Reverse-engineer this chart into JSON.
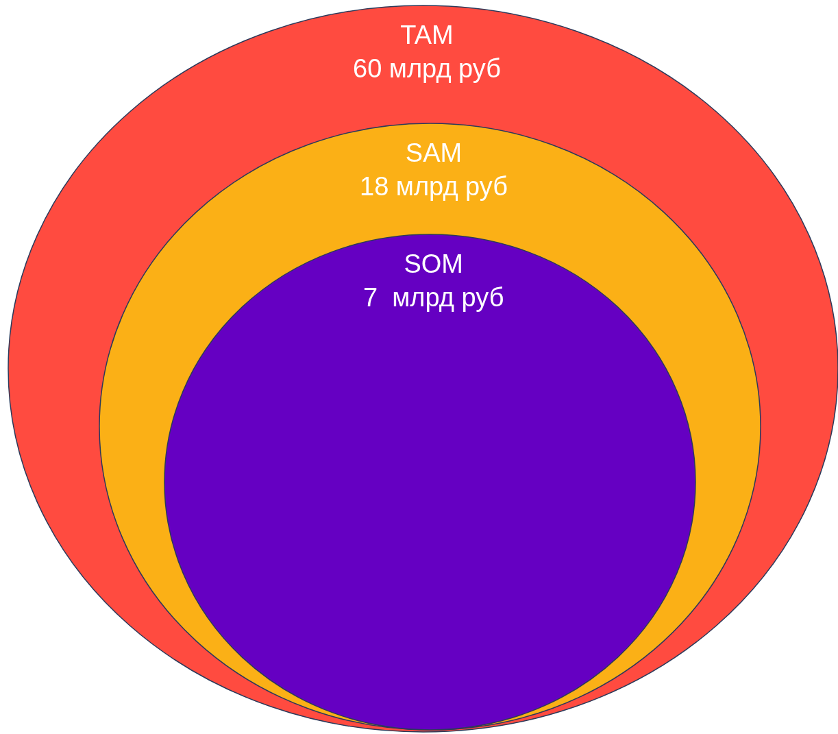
{
  "chart_data": {
    "type": "other",
    "categories": [
      "TAM",
      "SAM",
      "SOM"
    ],
    "values": [
      60,
      18,
      7
    ],
    "value_labels": [
      "60 млрд руб",
      "18 млрд руб",
      "7  млрд руб"
    ],
    "colors": [
      "#ff4b40",
      "#fbb016",
      "#6500c2"
    ]
  }
}
